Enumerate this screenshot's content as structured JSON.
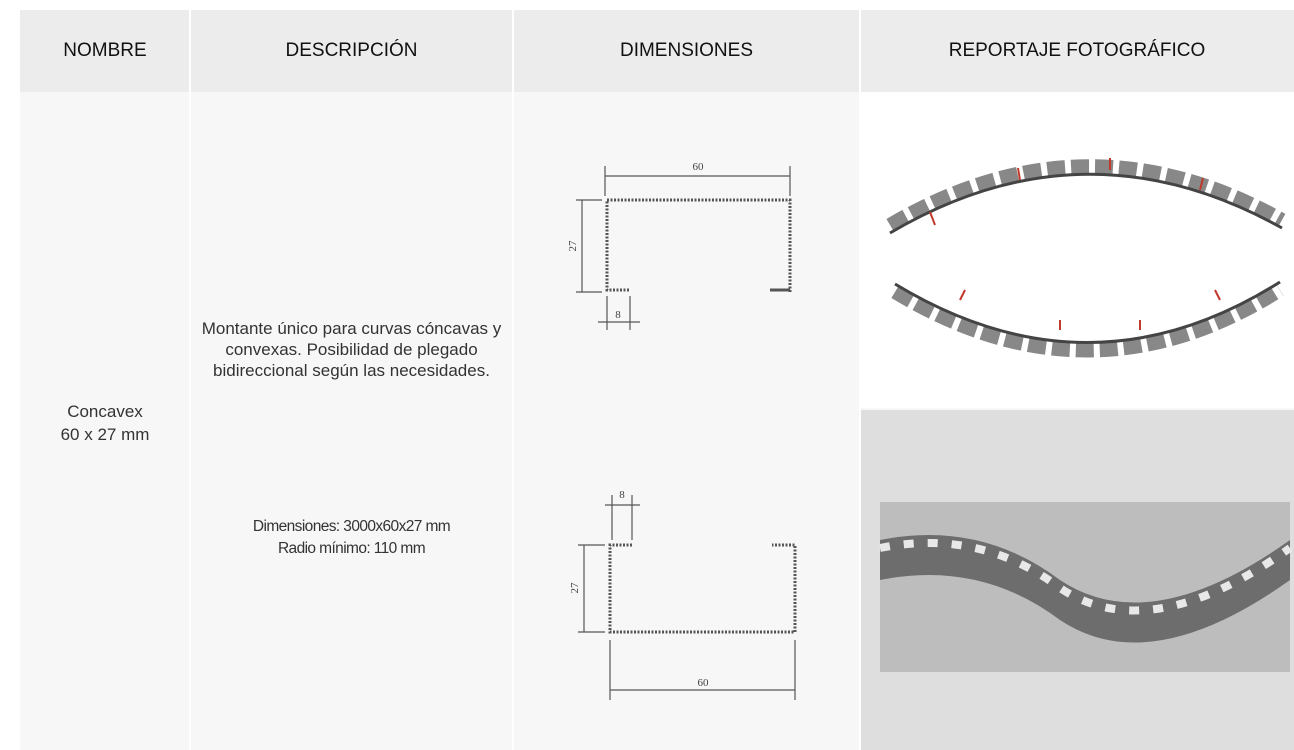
{
  "table": {
    "header": [
      "NOMBRE",
      "DESCRIPCIÓN",
      "DIMENSIONES",
      "REPORTAJE FOTOGRÁFICO"
    ],
    "rows": [
      {
        "name": [
          "Concavex",
          "60 x 27 mm"
        ],
        "description": "Montante único para curvas cóncavas y convexas. Posibilidad de plegado bidireccional según las necesidades.",
        "specs": [
          "Dimensiones: 3000x60x27 mm",
          "Radio mínimo: 110 mm"
        ],
        "drawings": [
          {
            "width": "60",
            "height": "27",
            "lip": "8"
          },
          {
            "width": "60",
            "height": "27",
            "lip": "8"
          }
        ]
      }
    ]
  }
}
